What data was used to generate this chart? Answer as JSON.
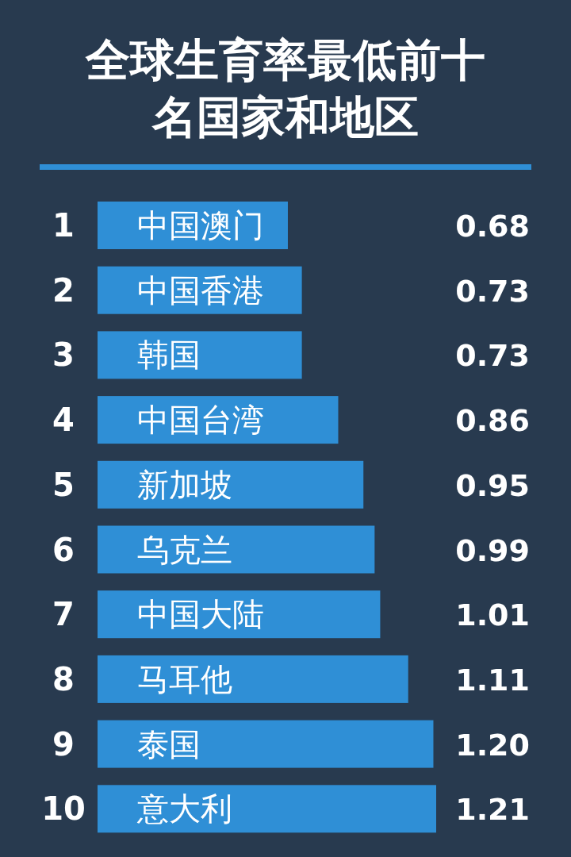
{
  "chart_data": {
    "type": "bar",
    "orientation": "horizontal",
    "title": "全球生育率最低前十名国家和地区",
    "color": "#2f8fd6",
    "categories": [
      "中国澳门",
      "中国香港",
      "韩国",
      "中国台湾",
      "新加坡",
      "乌克兰",
      "中国大陆",
      "马耳他",
      "泰国",
      "意大利"
    ],
    "values": [
      0.68,
      0.73,
      0.73,
      0.86,
      0.95,
      0.99,
      1.01,
      1.11,
      1.2,
      1.21
    ],
    "value_labels": [
      "0.68",
      "0.73",
      "0.73",
      "0.86",
      "0.95",
      "0.99",
      "1.01",
      "1.11",
      "1.20",
      "1.21"
    ],
    "annotations": [
      "1",
      "2",
      "3",
      "4",
      "5",
      "6",
      "7",
      "8",
      "9",
      "10"
    ]
  }
}
